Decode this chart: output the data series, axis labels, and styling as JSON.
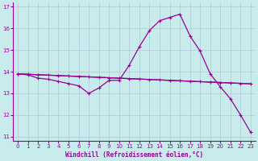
{
  "xlabel": "Windchill (Refroidissement éolien,°C)",
  "bg_color": "#c8ecec",
  "line_color": "#990099",
  "grid_color": "#b0c8d8",
  "x": [
    0,
    1,
    2,
    3,
    4,
    5,
    6,
    7,
    8,
    9,
    10,
    11,
    12,
    13,
    14,
    15,
    16,
    17,
    18,
    19,
    20,
    21,
    22,
    23
  ],
  "windchill": [
    13.9,
    13.85,
    13.7,
    13.65,
    13.55,
    13.45,
    13.35,
    13.0,
    13.25,
    13.6,
    13.6,
    14.3,
    15.15,
    15.9,
    16.35,
    16.5,
    16.65,
    15.65,
    14.95,
    13.9,
    13.3,
    12.75,
    12.0,
    11.2
  ],
  "temp": [
    13.9,
    13.88,
    13.86,
    13.84,
    13.82,
    13.8,
    13.78,
    13.76,
    13.74,
    13.72,
    13.7,
    13.68,
    13.66,
    13.64,
    13.62,
    13.6,
    13.58,
    13.56,
    13.54,
    13.52,
    13.5,
    13.48,
    13.46,
    13.44
  ],
  "straight_line": [
    [
      0,
      13.9
    ],
    [
      23,
      13.44
    ]
  ],
  "ylim": [
    10.8,
    17.2
  ],
  "yticks": [
    11,
    12,
    13,
    14,
    15,
    16,
    17
  ],
  "xlim": [
    -0.5,
    23.5
  ],
  "axis_fontsize": 5.5,
  "tick_fontsize": 5.0,
  "xlabel_fontsize": 5.5
}
